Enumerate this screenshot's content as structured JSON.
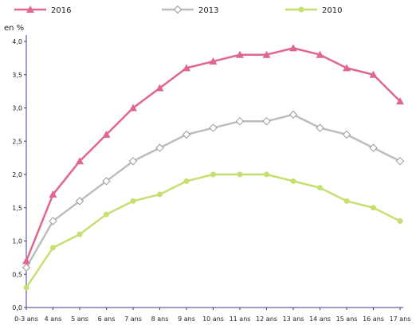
{
  "chart_data": {
    "type": "line",
    "title": "",
    "xlabel": "",
    "ylabel": "en %",
    "ylim": [
      0,
      4.0
    ],
    "yticks": [
      "0,0",
      "0,5",
      "1,0",
      "1,5",
      "2,0",
      "2,5",
      "3,0",
      "3,5",
      "4,0"
    ],
    "categories": [
      "0-3 ans",
      "4 ans",
      "5 ans",
      "6 ans",
      "7 ans",
      "8 ans",
      "9 ans",
      "10 ans",
      "11 ans",
      "12 ans",
      "13 ans",
      "14 ans",
      "15 ans",
      "16 ans",
      "17 ans"
    ],
    "grid": false,
    "legend_position": "top",
    "series": [
      {
        "name": "2016",
        "color": "#e0668f",
        "marker": "triangle",
        "values": [
          0.7,
          1.7,
          2.2,
          2.6,
          3.0,
          3.3,
          3.6,
          3.7,
          3.8,
          3.8,
          3.9,
          3.8,
          3.6,
          3.5,
          3.1
        ]
      },
      {
        "name": "2013",
        "color": "#bdbdbd",
        "marker": "diamond-open",
        "values": [
          0.6,
          1.3,
          1.6,
          1.9,
          2.2,
          2.4,
          2.6,
          2.7,
          2.8,
          2.8,
          2.9,
          2.7,
          2.6,
          2.4,
          2.2
        ]
      },
      {
        "name": "2010",
        "color": "#c6e070",
        "marker": "circle",
        "values": [
          0.3,
          0.9,
          1.1,
          1.4,
          1.6,
          1.7,
          1.9,
          2.0,
          2.0,
          2.0,
          1.9,
          1.8,
          1.6,
          1.5,
          1.3
        ]
      }
    ]
  }
}
